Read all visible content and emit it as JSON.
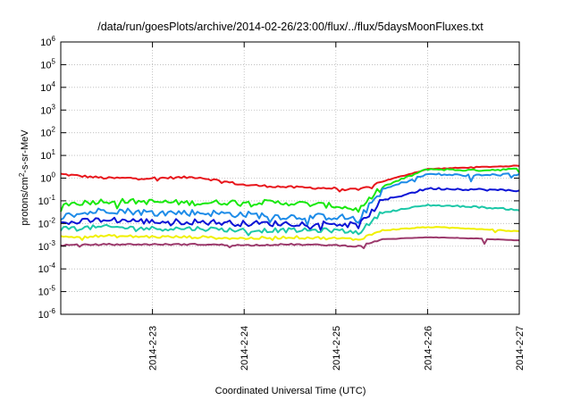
{
  "chart_data": {
    "type": "line",
    "title": "/data/run/goesPlots/archive/2014-02-26/23:00/flux/../flux/5daysMoonFluxes.txt",
    "xlabel": "Coordinated Universal Time (UTC)",
    "ylabel": {
      "base": "protons/cm",
      "sup": "2",
      "rest": "-s-sr-MeV"
    },
    "x_range": [
      "2014-02-22",
      "2014-02-27"
    ],
    "x_ticks": [
      "2014-2-23",
      "2014-2-24",
      "2014-2-25",
      "2014-2-26",
      "2014-2-27"
    ],
    "y_scale": "log",
    "y_range": [
      1e-06,
      1000000.0
    ],
    "y_ticks": [
      {
        "base": "10",
        "exp": "6"
      },
      {
        "base": "10",
        "exp": "5"
      },
      {
        "base": "10",
        "exp": "4"
      },
      {
        "base": "10",
        "exp": "3"
      },
      {
        "base": "10",
        "exp": "2"
      },
      {
        "base": "10",
        "exp": "1"
      },
      {
        "base": "10",
        "exp": "0"
      },
      {
        "base": "10",
        "exp": "-1"
      },
      {
        "base": "10",
        "exp": "-2"
      },
      {
        "base": "10",
        "exp": "-3"
      },
      {
        "base": "10",
        "exp": "-4"
      },
      {
        "base": "10",
        "exp": "-5"
      },
      {
        "base": "10",
        "exp": "-6"
      }
    ],
    "grid": true,
    "legend": "none",
    "series": [
      {
        "color": "#e8161c",
        "points": [
          [
            "2014-02-22 00:00",
            1.5
          ],
          [
            "2014-02-22 06:00",
            1.2
          ],
          [
            "2014-02-22 12:00",
            1.0
          ],
          [
            "2014-02-23 00:00",
            1.0
          ],
          [
            "2014-02-23 12:00",
            1.1
          ],
          [
            "2014-02-24 00:00",
            0.5
          ],
          [
            "2014-02-24 12:00",
            0.4
          ],
          [
            "2014-02-25 00:00",
            0.35
          ],
          [
            "2014-02-25 06:00",
            0.3
          ],
          [
            "2014-02-25 12:00",
            0.7
          ],
          [
            "2014-02-26 00:00",
            2.5
          ],
          [
            "2014-02-26 12:00",
            3.0
          ],
          [
            "2014-02-27 00:00",
            3.5
          ]
        ]
      },
      {
        "color": "#19e80f",
        "points": [
          [
            "2014-02-22 00:00",
            0.07
          ],
          [
            "2014-02-22 12:00",
            0.1
          ],
          [
            "2014-02-23 00:00",
            0.09
          ],
          [
            "2014-02-23 12:00",
            0.08
          ],
          [
            "2014-02-24 00:00",
            0.09
          ],
          [
            "2014-02-24 12:00",
            0.08
          ],
          [
            "2014-02-25 00:00",
            0.06
          ],
          [
            "2014-02-25 06:00",
            0.04
          ],
          [
            "2014-02-25 12:00",
            0.4
          ],
          [
            "2014-02-26 00:00",
            2.5
          ],
          [
            "2014-02-26 12:00",
            2.2
          ],
          [
            "2014-02-27 00:00",
            2.5
          ]
        ]
      },
      {
        "color": "#1e8ce8",
        "points": [
          [
            "2014-02-22 00:00",
            0.02
          ],
          [
            "2014-02-22 12:00",
            0.04
          ],
          [
            "2014-02-23 00:00",
            0.03
          ],
          [
            "2014-02-23 12:00",
            0.03
          ],
          [
            "2014-02-24 00:00",
            0.025
          ],
          [
            "2014-02-24 12:00",
            0.02
          ],
          [
            "2014-02-25 00:00",
            0.02
          ],
          [
            "2014-02-25 06:00",
            0.015
          ],
          [
            "2014-02-25 12:00",
            0.3
          ],
          [
            "2014-02-26 00:00",
            1.5
          ],
          [
            "2014-02-26 12:00",
            1.3
          ],
          [
            "2014-02-27 00:00",
            1.5
          ]
        ]
      },
      {
        "color": "#0c14d6",
        "points": [
          [
            "2014-02-22 00:00",
            0.01
          ],
          [
            "2014-02-22 12:00",
            0.015
          ],
          [
            "2014-02-23 00:00",
            0.012
          ],
          [
            "2014-02-23 12:00",
            0.012
          ],
          [
            "2014-02-24 00:00",
            0.01
          ],
          [
            "2014-02-24 12:00",
            0.01
          ],
          [
            "2014-02-25 00:00",
            0.01
          ],
          [
            "2014-02-25 06:00",
            0.008
          ],
          [
            "2014-02-25 12:00",
            0.1
          ],
          [
            "2014-02-26 00:00",
            0.35
          ],
          [
            "2014-02-26 12:00",
            0.32
          ],
          [
            "2014-02-27 00:00",
            0.28
          ]
        ]
      },
      {
        "color": "#1dc8a8",
        "points": [
          [
            "2014-02-22 00:00",
            0.006
          ],
          [
            "2014-02-22 12:00",
            0.007
          ],
          [
            "2014-02-23 00:00",
            0.006
          ],
          [
            "2014-02-23 12:00",
            0.006
          ],
          [
            "2014-02-24 00:00",
            0.005
          ],
          [
            "2014-02-24 12:00",
            0.005
          ],
          [
            "2014-02-25 00:00",
            0.005
          ],
          [
            "2014-02-25 06:00",
            0.004
          ],
          [
            "2014-02-25 12:00",
            0.03
          ],
          [
            "2014-02-26 00:00",
            0.065
          ],
          [
            "2014-02-26 12:00",
            0.055
          ],
          [
            "2014-02-27 00:00",
            0.04
          ]
        ]
      },
      {
        "color": "#f0f000",
        "points": [
          [
            "2014-02-22 00:00",
            0.0025
          ],
          [
            "2014-02-22 12:00",
            0.0028
          ],
          [
            "2014-02-23 00:00",
            0.0026
          ],
          [
            "2014-02-23 12:00",
            0.0025
          ],
          [
            "2014-02-24 00:00",
            0.0022
          ],
          [
            "2014-02-24 12:00",
            0.0025
          ],
          [
            "2014-02-25 00:00",
            0.0022
          ],
          [
            "2014-02-25 06:00",
            0.002
          ],
          [
            "2014-02-25 12:00",
            0.005
          ],
          [
            "2014-02-26 00:00",
            0.007
          ],
          [
            "2014-02-26 12:00",
            0.006
          ],
          [
            "2014-02-27 00:00",
            0.0045
          ]
        ]
      },
      {
        "color": "#9c3a6c",
        "points": [
          [
            "2014-02-22 00:00",
            0.0011
          ],
          [
            "2014-02-22 12:00",
            0.0012
          ],
          [
            "2014-02-23 00:00",
            0.0012
          ],
          [
            "2014-02-23 12:00",
            0.0012
          ],
          [
            "2014-02-24 00:00",
            0.0011
          ],
          [
            "2014-02-24 12:00",
            0.0012
          ],
          [
            "2014-02-25 00:00",
            0.0011
          ],
          [
            "2014-02-25 06:00",
            0.001
          ],
          [
            "2014-02-25 12:00",
            0.002
          ],
          [
            "2014-02-26 00:00",
            0.0025
          ],
          [
            "2014-02-26 12:00",
            0.0022
          ],
          [
            "2014-02-27 00:00",
            0.0018
          ]
        ]
      }
    ]
  }
}
